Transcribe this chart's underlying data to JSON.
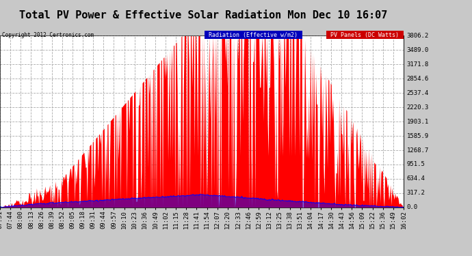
{
  "title": "Total PV Power & Effective Solar Radiation Mon Dec 10 16:07",
  "copyright": "Copyright 2012 Certronics.com",
  "legend_labels": [
    "Radiation (Effective w/m2)",
    "PV Panels (DC Watts)"
  ],
  "y_max": 3806.2,
  "y_ticks": [
    0.0,
    317.2,
    634.4,
    951.5,
    1268.7,
    1585.9,
    1903.1,
    2220.3,
    2537.4,
    2854.6,
    3171.8,
    3489.0,
    3806.2
  ],
  "x_tick_labels": [
    "07:31",
    "07:44",
    "08:00",
    "08:13",
    "08:26",
    "08:39",
    "08:52",
    "09:05",
    "09:18",
    "09:31",
    "09:44",
    "09:57",
    "10:10",
    "10:23",
    "10:36",
    "10:49",
    "11:02",
    "11:15",
    "11:28",
    "11:41",
    "11:54",
    "12:07",
    "12:20",
    "12:33",
    "12:46",
    "12:59",
    "13:12",
    "13:25",
    "13:38",
    "13:51",
    "14:04",
    "14:17",
    "14:30",
    "14:43",
    "14:56",
    "15:09",
    "15:22",
    "15:36",
    "15:49",
    "16:02"
  ],
  "background_color": "#c8c8c8",
  "plot_bg_color": "#ffffff",
  "grid_color": "#aaaaaa",
  "title_fontsize": 11,
  "tick_fontsize": 6.5,
  "radiation_color": "#0000ff",
  "pv_color": "#ff0000",
  "legend_bg_blue": "#0000cc",
  "legend_bg_red": "#cc0000"
}
